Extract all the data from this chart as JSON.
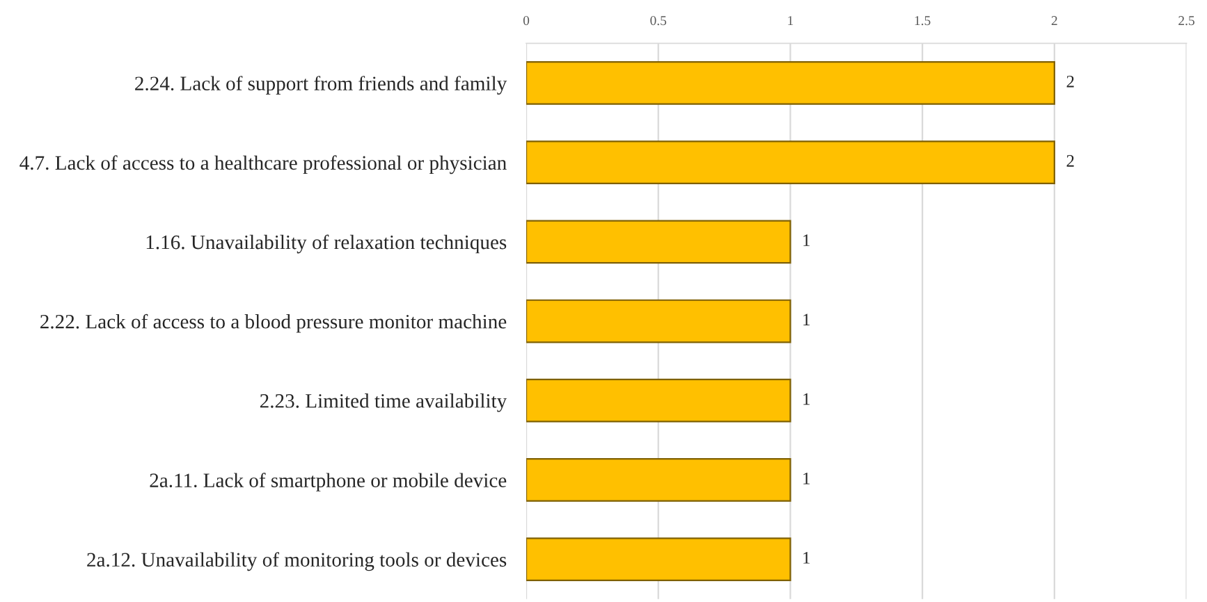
{
  "chart_data": {
    "type": "bar",
    "orientation": "horizontal",
    "categories": [
      "2.24. Lack of support from friends and family",
      "4.7. Lack of access to a healthcare professional or physician",
      "1.16. Unavailability of relaxation techniques",
      "2.22. Lack of access to a blood pressure monitor machine",
      "2.23. Limited time availability",
      "2a.11. Lack of smartphone or mobile device",
      "2a.12. Unavailability of monitoring tools or devices"
    ],
    "values": [
      2,
      2,
      1,
      1,
      1,
      1,
      1
    ],
    "color": "#ffc000",
    "xlim": [
      0,
      2.5
    ],
    "xticks": [
      0,
      0.5,
      1,
      1.5,
      2,
      2.5
    ],
    "grid": "x",
    "data_labels": true
  }
}
